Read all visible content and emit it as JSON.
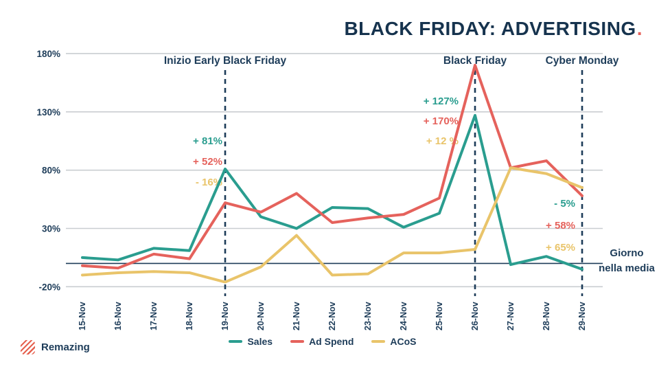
{
  "title": {
    "main": "BLACK FRIDAY: ADVERTISING",
    "accent_dot": "."
  },
  "brand": {
    "name": "Remazing"
  },
  "side_note": {
    "line1": "Giorno",
    "line2": "nella media"
  },
  "colors": {
    "navy": "#1d3c59",
    "title_navy": "#16334e",
    "accent_red": "#e5625c",
    "grid": "#c9cdd1",
    "sales": "#2a9d8f",
    "ad_spend": "#e5625c",
    "acos": "#e9c46a"
  },
  "legend": {
    "items": [
      {
        "label": "Sales",
        "series": "Sales"
      },
      {
        "label": "Ad Spend",
        "series": "Ad Spend"
      },
      {
        "label": "ACoS",
        "series": "ACoS"
      }
    ]
  },
  "chart_data": {
    "type": "line",
    "x": [
      "15-Nov",
      "16-Nov",
      "17-Nov",
      "18-Nov",
      "19-Nov",
      "20-Nov",
      "21-Nov",
      "22-Nov",
      "23-Nov",
      "24-Nov",
      "25-Nov",
      "26-Nov",
      "27-Nov",
      "28-Nov",
      "29-Nov"
    ],
    "series": [
      {
        "name": "Sales",
        "color": "#2a9d8f",
        "values": [
          5,
          3,
          13,
          11,
          81,
          40,
          30,
          48,
          47,
          31,
          43,
          127,
          -1,
          6,
          -5
        ]
      },
      {
        "name": "Ad Spend",
        "color": "#e5625c",
        "values": [
          -2,
          -4,
          8,
          4,
          52,
          44,
          60,
          35,
          39,
          42,
          56,
          170,
          82,
          88,
          58
        ]
      },
      {
        "name": "ACoS",
        "color": "#e9c46a",
        "values": [
          -10,
          -8,
          -7,
          -8,
          -16,
          -3,
          24,
          -10,
          -9,
          9,
          9,
          12,
          82,
          77,
          65
        ]
      }
    ],
    "ylim": [
      -20,
      180
    ],
    "yticks": [
      180,
      130,
      80,
      30,
      -20
    ],
    "ytick_suffix": "%",
    "baseline": 0,
    "grid": true,
    "legend_position": "bottom",
    "events": [
      {
        "x": "19-Nov",
        "label": "Inizio Early Black Friday",
        "annotations": [
          {
            "text": "+ 81%",
            "series": "Sales"
          },
          {
            "text": "+ 52%",
            "series": "Ad Spend"
          },
          {
            "text": "- 16%",
            "series": "ACoS"
          }
        ]
      },
      {
        "x": "26-Nov",
        "label": "Black Friday",
        "annotations": [
          {
            "text": "+ 127%",
            "series": "Sales"
          },
          {
            "text": "+ 170%",
            "series": "Ad Spend"
          },
          {
            "text": "+ 12 %",
            "series": "ACoS"
          }
        ]
      },
      {
        "x": "29-Nov",
        "label": "Cyber Monday",
        "annotations": [
          {
            "text": "- 5%",
            "series": "Sales"
          },
          {
            "text": "+ 58%",
            "series": "Ad Spend"
          },
          {
            "text": "+ 65%",
            "series": "ACoS"
          }
        ]
      }
    ]
  }
}
